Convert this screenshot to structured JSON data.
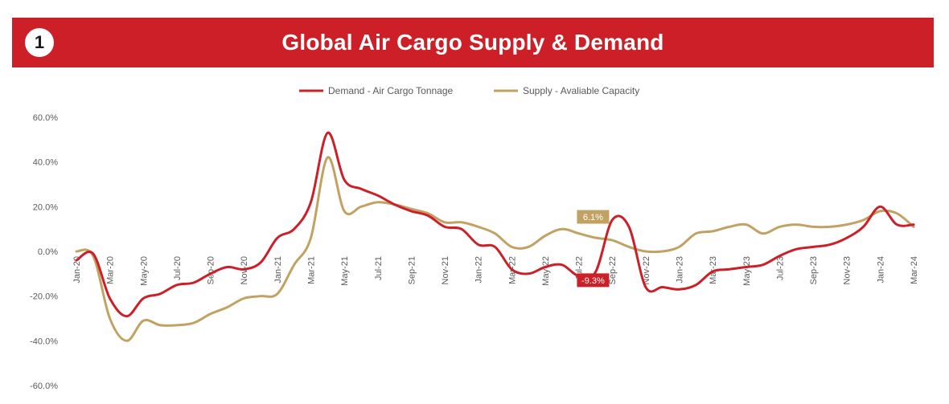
{
  "banner": {
    "number": "1",
    "title": "Global Air Cargo Supply & Demand"
  },
  "colors": {
    "banner": "#cc1f27",
    "demand": "#cc1f27",
    "supply": "#c2a263",
    "text": "#595959"
  },
  "chart_data": {
    "type": "line",
    "title": "Global Air Cargo Supply & Demand",
    "xlabel": "",
    "ylabel": "",
    "ylim": [
      -60,
      60
    ],
    "y_ticks": [
      "60.0%",
      "40.0%",
      "20.0%",
      "0.0%",
      "-20.0%",
      "-40.0%",
      "-60.0%"
    ],
    "y_tick_values": [
      60,
      40,
      20,
      0,
      -20,
      -40,
      -60
    ],
    "x_tick_labels": [
      "Jan-20",
      "Mar-20",
      "May-20",
      "Jul-20",
      "Sep-20",
      "Nov-20",
      "Jan-21",
      "Mar-21",
      "May-21",
      "Jul-21",
      "Sep-21",
      "Nov-21",
      "Jan-22",
      "Mar-22",
      "May-22",
      "Jul-22",
      "Sep-22",
      "Nov-22",
      "Jan-23",
      "Mar-23",
      "May-23",
      "Jul-23",
      "Sep-23",
      "Nov-23",
      "Jan-24",
      "Mar-24"
    ],
    "x": [
      "Jan-20",
      "Feb-20",
      "Mar-20",
      "Apr-20",
      "May-20",
      "Jun-20",
      "Jul-20",
      "Aug-20",
      "Sep-20",
      "Oct-20",
      "Nov-20",
      "Dec-20",
      "Jan-21",
      "Feb-21",
      "Mar-21",
      "Apr-21",
      "May-21",
      "Jun-21",
      "Jul-21",
      "Aug-21",
      "Sep-21",
      "Oct-21",
      "Nov-21",
      "Dec-21",
      "Jan-22",
      "Feb-22",
      "Mar-22",
      "Apr-22",
      "May-22",
      "Jun-22",
      "Jul-22",
      "Aug-22",
      "Sep-22",
      "Oct-22",
      "Nov-22",
      "Dec-22",
      "Jan-23",
      "Feb-23",
      "Mar-23",
      "Apr-23",
      "May-23",
      "Jun-23",
      "Jul-23",
      "Aug-23",
      "Sep-23",
      "Oct-23",
      "Nov-23",
      "Dec-23",
      "Jan-24",
      "Feb-24",
      "Mar-24"
    ],
    "legend_position": "top-center",
    "grid": false,
    "series": [
      {
        "name": "Demand - Air Cargo Tonnage",
        "color": "#cc1f27",
        "values": [
          -4,
          -1,
          -21,
          -29,
          -21,
          -19,
          -15,
          -14,
          -10,
          -7,
          -8,
          -5,
          6,
          10,
          22,
          53,
          32,
          28,
          25,
          21,
          18,
          16,
          11,
          10,
          3,
          2,
          -8,
          -10,
          -7,
          -6,
          -11,
          -9.3,
          14,
          11,
          -16,
          -16,
          -17,
          -15,
          -9,
          -8,
          -7,
          -6,
          -2,
          1,
          2,
          3,
          6,
          11,
          20,
          12,
          12
        ]
      },
      {
        "name": "Supply - Avaliable Capacity",
        "color": "#c2a263",
        "values": [
          0,
          -2,
          -30,
          -40,
          -31,
          -33,
          -33,
          -32,
          -28,
          -25,
          -21,
          -20,
          -19,
          -6,
          6,
          42,
          18,
          20,
          22,
          21,
          19,
          17,
          13,
          13,
          11,
          8,
          2,
          2,
          7,
          10,
          8,
          6.1,
          5,
          2,
          0,
          0,
          2,
          8,
          9,
          11,
          12,
          8,
          11,
          12,
          11,
          11,
          12,
          14,
          18,
          17,
          11
        ]
      }
    ],
    "annotations": [
      {
        "series": "Supply - Avaliable Capacity",
        "x": "Aug-22",
        "label": "6.1%"
      },
      {
        "series": "Demand - Air Cargo Tonnage",
        "x": "Aug-22",
        "label": "-9.3%"
      }
    ]
  }
}
